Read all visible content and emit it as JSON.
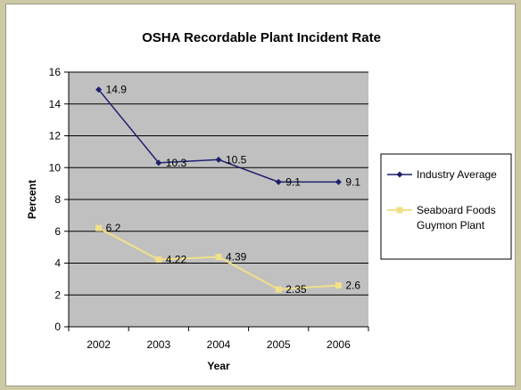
{
  "colors": {
    "background": "#cdc9a4",
    "plot_area": "#c0c0c0",
    "gridline": "#000000",
    "industry_series": "#1f1f6e",
    "seaboard_series": "#f1e08a"
  },
  "chart_data": {
    "type": "line",
    "title": "OSHA Recordable Plant Incident Rate",
    "xlabel": "Year",
    "ylabel": "Percent",
    "categories": [
      "2002",
      "2003",
      "2004",
      "2005",
      "2006"
    ],
    "ylim": [
      0,
      16
    ],
    "yticks": [
      0,
      2,
      4,
      6,
      8,
      10,
      12,
      14,
      16
    ],
    "grid": true,
    "legend_placement": "right",
    "series": [
      {
        "name": "Industry Average",
        "values": [
          14.9,
          10.3,
          10.5,
          9.1,
          9.1
        ],
        "labels": [
          "14.9",
          "10.3",
          "10.5",
          "9.1",
          "9.1"
        ],
        "color": "#1f1f6e"
      },
      {
        "name": "Seaboard Foods Guymon Plant",
        "name_lines": [
          "Seaboard Foods",
          "Guymon Plant"
        ],
        "values": [
          6.2,
          4.22,
          4.39,
          2.35,
          2.6
        ],
        "labels": [
          "6.2",
          "4.22",
          "4.39",
          "2.35",
          "2.6"
        ],
        "color": "#f1e08a"
      }
    ]
  }
}
